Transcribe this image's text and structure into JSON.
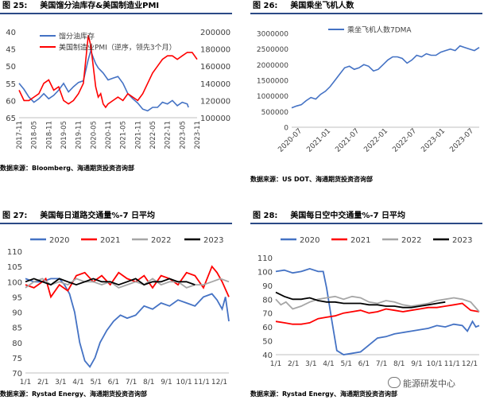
{
  "panels": [
    {
      "figure_no": "图 25:",
      "title": "美国馏分油库存&美国制造业PMI",
      "source": "数据来源：Bloomberg、海通期货投资咨询部"
    },
    {
      "figure_no": "图 26:",
      "title": "美国乘坐飞机人数",
      "source": "数据来源：US DOT、海通期货投资咨询部"
    },
    {
      "figure_no": "图 27:",
      "title": "美国每日道路交通量%-7 日平均",
      "source": "数据来源：Rystad Energy、海通期货投资咨询部"
    },
    {
      "figure_no": "图 28:",
      "title": "美国每日空中交通量%-7 日平均",
      "source": "数据来源：Rystad Energy、海通期货投资咨询部"
    }
  ],
  "watermark": "能源研发中心",
  "chart_data": [
    {
      "type": "line",
      "legend_position": "top-right",
      "grid": false,
      "x_ticks": [
        "2017-11",
        "2018-05",
        "2018-11",
        "2019-05",
        "2019-11",
        "2020-05",
        "2020-11",
        "2021-05",
        "2021-11",
        "2022-05",
        "2022-11",
        "2023-05",
        "2023-11"
      ],
      "x_range": [
        0,
        72
      ],
      "y_left": {
        "inverted": true,
        "range": [
          40,
          65
        ],
        "ticks": [
          40,
          45,
          50,
          55,
          60,
          65
        ]
      },
      "y_right": {
        "range": [
          100000,
          200000
        ],
        "ticks": [
          100000,
          120000,
          140000,
          160000,
          180000,
          200000
        ]
      },
      "series": [
        {
          "name": "馏分油库存",
          "axis": "right",
          "color": "#4472c4",
          "x": [
            0,
            2,
            4,
            6,
            8,
            10,
            12,
            14,
            16,
            18,
            20,
            22,
            24,
            26,
            28,
            29,
            30,
            31,
            32,
            34,
            36,
            38,
            40,
            42,
            44,
            46,
            48,
            50,
            52,
            54,
            56,
            58,
            60,
            62,
            64,
            66,
            68,
            68.5
          ],
          "values": [
            140000,
            133000,
            124000,
            118000,
            122000,
            128000,
            122000,
            126000,
            132000,
            140000,
            130000,
            136000,
            141000,
            143000,
            168000,
            178000,
            170000,
            163000,
            158000,
            152000,
            144000,
            146000,
            148000,
            140000,
            128000,
            122000,
            117000,
            110000,
            108000,
            112000,
            112000,
            118000,
            116000,
            120000,
            114000,
            118000,
            116000,
            112000
          ]
        },
        {
          "name": "美国制造业PMI（逆序，领先3个月）",
          "axis": "left",
          "color": "#ff0000",
          "x": [
            0,
            2,
            4,
            6,
            8,
            10,
            12,
            14,
            16,
            18,
            20,
            22,
            24,
            26,
            27,
            28,
            29,
            30,
            31,
            32,
            33,
            34,
            35,
            36,
            38,
            40,
            42,
            44,
            46,
            48,
            50,
            52,
            54,
            56,
            58,
            60,
            62,
            64,
            66,
            68,
            70,
            72
          ],
          "values": [
            57,
            60,
            60,
            59,
            58,
            55,
            54,
            57,
            56,
            60,
            61,
            60,
            58,
            55,
            48,
            41,
            44,
            50,
            56,
            59,
            58,
            61,
            62,
            61,
            60,
            59,
            60,
            58,
            59,
            60,
            58,
            55,
            52,
            50,
            48,
            47,
            47,
            48,
            47,
            46,
            46,
            48
          ]
        }
      ]
    },
    {
      "type": "line",
      "legend_position": "top",
      "grid": false,
      "x_ticks": [
        "2020-07",
        "2021-01",
        "2021-07",
        "2022-01",
        "2022-07",
        "2023-01",
        "2023-07"
      ],
      "x_range": [
        0,
        39
      ],
      "y_range": [
        0,
        3000000
      ],
      "y_ticks": [
        0,
        500000,
        1000000,
        1500000,
        2000000,
        2500000,
        3000000
      ],
      "series": [
        {
          "name": "乘坐飞机人数7DMA",
          "color": "#4472c4",
          "x": [
            0,
            1,
            2,
            3,
            4,
            5,
            6,
            7,
            8,
            9,
            10,
            11,
            12,
            13,
            14,
            15,
            16,
            17,
            18,
            19,
            20,
            21,
            22,
            23,
            24,
            25,
            26,
            27,
            28,
            29,
            30,
            31,
            32,
            33,
            34,
            35,
            36,
            37,
            38,
            39
          ],
          "values": [
            620000,
            680000,
            720000,
            850000,
            950000,
            900000,
            1050000,
            1150000,
            1300000,
            1500000,
            1700000,
            1900000,
            1950000,
            1850000,
            1900000,
            2000000,
            1950000,
            1800000,
            1850000,
            2000000,
            2150000,
            2250000,
            2250000,
            2200000,
            2050000,
            2150000,
            2300000,
            2250000,
            2350000,
            2300000,
            2300000,
            2400000,
            2450000,
            2500000,
            2450000,
            2600000,
            2550000,
            2500000,
            2450000,
            2550000
          ]
        }
      ]
    },
    {
      "type": "line",
      "legend_position": "top",
      "grid": false,
      "x_ticks": [
        "1/1",
        "2/1",
        "3/1",
        "4/1",
        "5/1",
        "6/1",
        "7/1",
        "8/1",
        "9/1",
        "10/1",
        "11/1",
        "12/1"
      ],
      "x_range": [
        0,
        12
      ],
      "y_range": [
        70,
        110
      ],
      "y_ticks": [
        70,
        75,
        80,
        85,
        90,
        95,
        100,
        105,
        110
      ],
      "series": [
        {
          "name": "2020",
          "color": "#4472c4",
          "x": [
            0,
            0.5,
            1,
            1.5,
            2,
            2.3,
            2.6,
            2.9,
            3.2,
            3.5,
            3.8,
            4.1,
            4.4,
            4.8,
            5.2,
            5.6,
            6,
            6.5,
            7,
            7.5,
            8,
            8.5,
            9,
            9.5,
            10,
            10.5,
            11,
            11.3,
            11.6,
            11.8,
            12
          ],
          "values": [
            101,
            100,
            100,
            101,
            101,
            99,
            96,
            90,
            80,
            74,
            72,
            75,
            80,
            84,
            87,
            89,
            88,
            89,
            92,
            91,
            93,
            92,
            94,
            93,
            92,
            95,
            96,
            94,
            91,
            95,
            87
          ]
        },
        {
          "name": "2021",
          "color": "#ff0000",
          "x": [
            0,
            0.5,
            1,
            1.2,
            1.5,
            2,
            2.5,
            3,
            3.5,
            4,
            4.5,
            5,
            5.5,
            6,
            6.5,
            7,
            7.5,
            8,
            8.5,
            9,
            9.5,
            10,
            10.5,
            11,
            11.3,
            11.6,
            12
          ],
          "values": [
            99,
            98,
            100,
            101,
            95,
            99,
            97,
            102,
            103,
            100,
            102,
            99,
            103,
            101,
            100,
            102,
            98,
            102,
            101,
            99,
            103,
            102,
            98,
            105,
            103,
            100,
            95
          ]
        },
        {
          "name": "2022",
          "color": "#a6a6a6",
          "x": [
            0,
            0.5,
            1,
            1.5,
            2,
            2.5,
            3,
            3.5,
            4,
            4.5,
            5,
            5.5,
            6,
            6.5,
            7,
            7.5,
            8,
            8.5,
            9,
            9.5,
            10,
            10.5,
            11,
            11.5,
            12
          ],
          "values": [
            98,
            100,
            101,
            99,
            100,
            99,
            101,
            100,
            100,
            99,
            100,
            98,
            99,
            100,
            99,
            101,
            99,
            100,
            100,
            98,
            99,
            99,
            100,
            101,
            100
          ]
        },
        {
          "name": "2023",
          "color": "#000000",
          "x": [
            0,
            0.5,
            1,
            1.5,
            2,
            2.5,
            3,
            3.5,
            4,
            4.5,
            5,
            5.5,
            6,
            6.5,
            7,
            7.5,
            8,
            8.5,
            9,
            9.5,
            10
          ],
          "values": [
            100,
            101,
            100,
            99,
            101,
            100,
            99,
            100,
            101,
            100,
            100,
            99,
            100,
            101,
            99,
            100,
            100,
            101,
            100,
            100,
            99
          ]
        }
      ]
    },
    {
      "type": "line",
      "legend_position": "top",
      "grid": false,
      "x_ticks": [
        "1/1",
        "2/1",
        "3/1",
        "4/1",
        "5/1",
        "6/1",
        "7/1",
        "8/1",
        "9/1",
        "10/1",
        "11/1",
        "12/1"
      ],
      "x_range": [
        0,
        12
      ],
      "y_range": [
        40,
        110
      ],
      "y_ticks": [
        40,
        50,
        60,
        70,
        80,
        90,
        100,
        110
      ],
      "series": [
        {
          "name": "2020",
          "color": "#4472c4",
          "x": [
            0,
            0.5,
            1,
            1.5,
            2,
            2.5,
            2.8,
            3,
            3.3,
            3.6,
            4,
            4.5,
            5,
            5.3,
            5.6,
            6,
            6.5,
            7,
            7.5,
            8,
            8.5,
            9,
            9.5,
            10,
            10.5,
            11,
            11.3,
            11.6,
            11.8,
            12
          ],
          "values": [
            100,
            101,
            99,
            100,
            102,
            100,
            100,
            88,
            65,
            43,
            40,
            41,
            42,
            45,
            48,
            52,
            53,
            55,
            56,
            57,
            58,
            59,
            61,
            60,
            62,
            61,
            57,
            64,
            60,
            61
          ]
        },
        {
          "name": "2021",
          "color": "#ff0000",
          "x": [
            0,
            0.5,
            1,
            1.5,
            2,
            2.5,
            3,
            3.5,
            4,
            4.5,
            5,
            5.5,
            6,
            6.5,
            7,
            7.5,
            8,
            8.5,
            9,
            9.5,
            10,
            10.5,
            11,
            11.5,
            12
          ],
          "values": [
            64,
            63,
            62,
            62,
            63,
            66,
            67,
            68,
            70,
            71,
            72,
            70,
            71,
            73,
            72,
            71,
            72,
            73,
            74,
            74,
            75,
            76,
            77,
            72,
            71
          ]
        },
        {
          "name": "2022",
          "color": "#a6a6a6",
          "x": [
            0,
            0.3,
            0.6,
            1,
            1.5,
            2,
            2.5,
            3,
            3.5,
            4,
            4.5,
            5,
            5.5,
            6,
            6.5,
            7,
            7.5,
            8,
            8.5,
            9,
            9.5,
            10,
            10.5,
            11,
            11.5,
            12
          ],
          "values": [
            80,
            76,
            78,
            73,
            75,
            78,
            80,
            81,
            82,
            80,
            82,
            81,
            78,
            77,
            79,
            78,
            76,
            75,
            76,
            77,
            79,
            80,
            81,
            80,
            78,
            71
          ]
        },
        {
          "name": "2023",
          "color": "#000000",
          "x": [
            0,
            0.5,
            1,
            1.5,
            2,
            2.5,
            3,
            3.5,
            4,
            4.5,
            5,
            5.5,
            6,
            6.5,
            7,
            7.5,
            8,
            8.5,
            9,
            9.5,
            10
          ],
          "values": [
            85,
            82,
            80,
            80,
            81,
            79,
            78,
            78,
            77,
            77,
            77,
            76,
            76,
            75,
            75,
            74,
            74,
            75,
            76,
            77,
            78
          ]
        }
      ]
    }
  ]
}
